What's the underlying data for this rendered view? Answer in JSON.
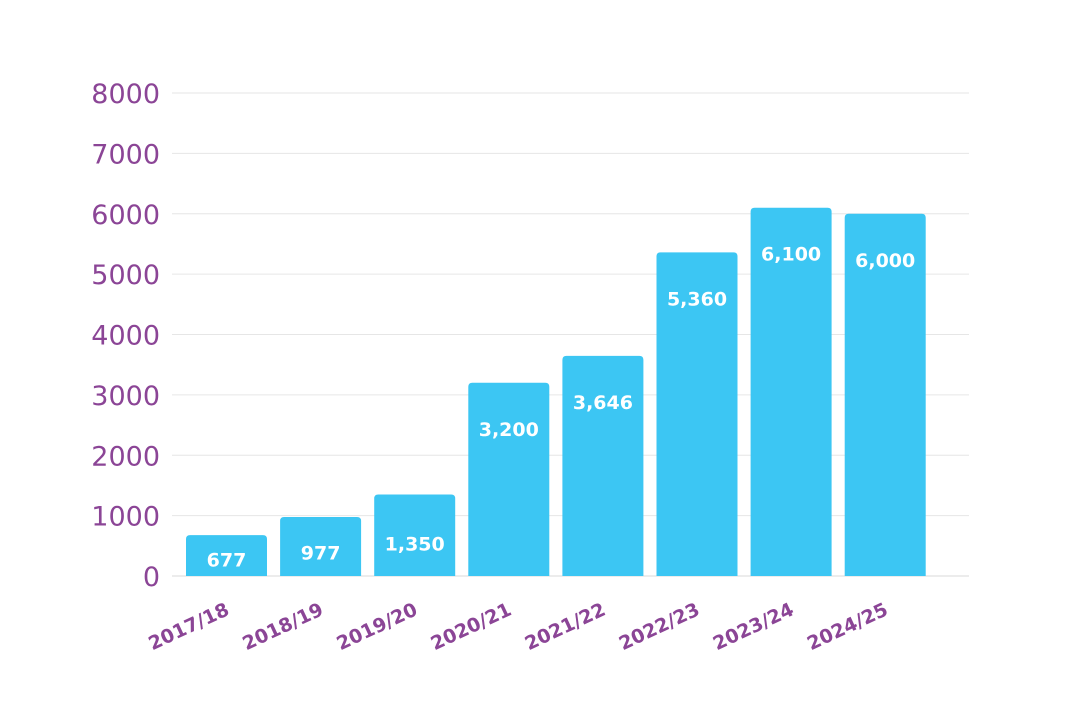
{
  "chart_data": {
    "type": "bar",
    "title": "",
    "xlabel": "",
    "ylabel": "",
    "categories": [
      "2017/18",
      "2018/19",
      "2019/20",
      "2020/21",
      "2021/22",
      "2022/23",
      "2023/24",
      "2024/25"
    ],
    "values": [
      677,
      977,
      1350,
      3200,
      3646,
      5360,
      6100,
      6000
    ],
    "data_labels": [
      "677",
      "977",
      "1,350",
      "3,200",
      "3,646",
      "5,360",
      "6,100",
      "6,000"
    ],
    "y_ticks": [
      0,
      1000,
      2000,
      3000,
      4000,
      5000,
      6000,
      7000,
      8000
    ],
    "ylim": [
      0,
      8000
    ],
    "grid": true,
    "legend": "none",
    "colors": {
      "bar": "#3cc6f3",
      "tick_label": "#8b4596",
      "grid": "#e6e6e6",
      "data_label": "#ffffff"
    }
  }
}
